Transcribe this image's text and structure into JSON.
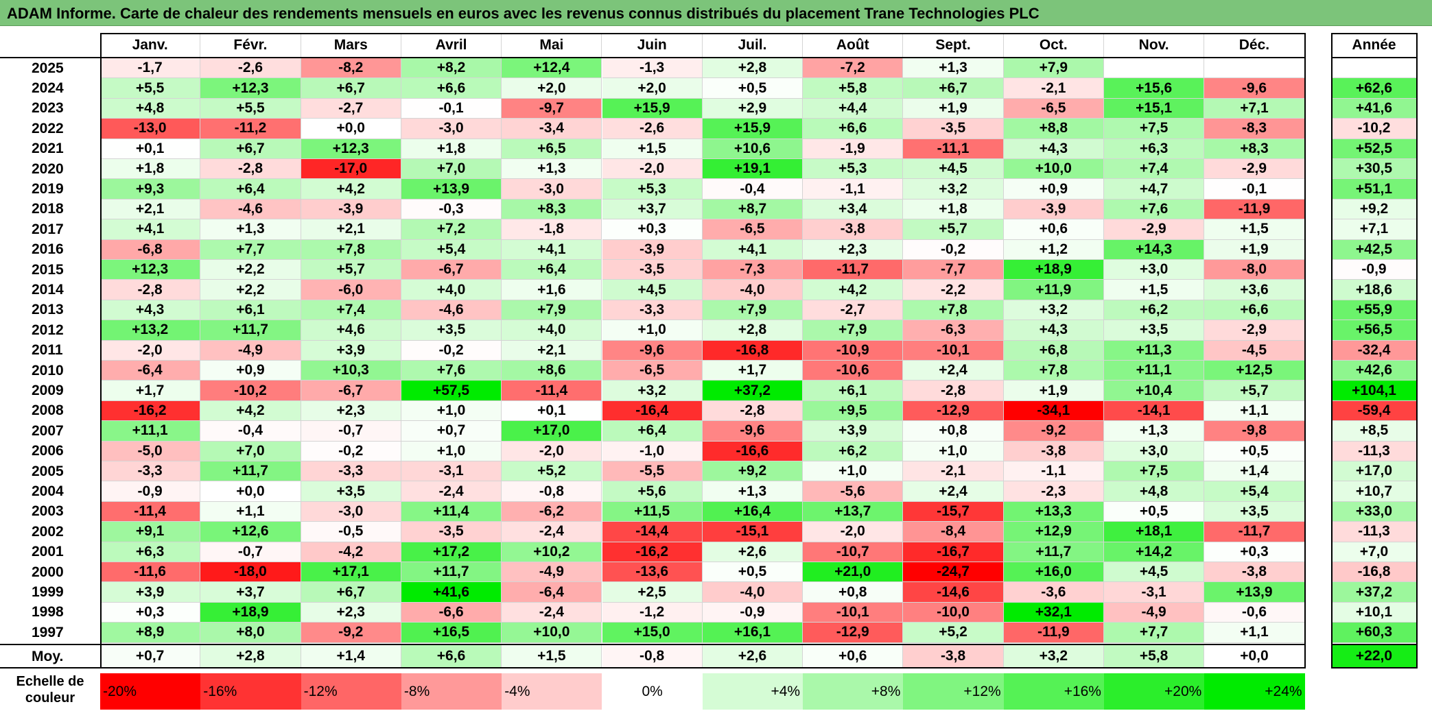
{
  "title": "ADAM Informe. Carte de chaleur des rendements mensuels en euros avec les revenus connus distribués du placement Trane Technologies PLC",
  "chart_data": {
    "type": "heatmap",
    "months": [
      "Janv.",
      "Févr.",
      "Mars",
      "Avril",
      "Mai",
      "Juin",
      "Juil.",
      "Août",
      "Sept.",
      "Oct.",
      "Nov.",
      "Déc."
    ],
    "year_header": "Année",
    "avg_label": "Moy.",
    "rows": [
      {
        "year": "2025",
        "values": [
          "-1,7",
          "-2,6",
          "-8,2",
          "+8,2",
          "+12,4",
          "-1,3",
          "+2,8",
          "-7,2",
          "+1,3",
          "+7,9",
          "",
          ""
        ],
        "annual": ""
      },
      {
        "year": "2024",
        "values": [
          "+5,5",
          "+12,3",
          "+6,7",
          "+6,6",
          "+2,0",
          "+2,0",
          "+0,5",
          "+5,8",
          "+6,7",
          "-2,1",
          "+15,6",
          "-9,6"
        ],
        "annual": "+62,6"
      },
      {
        "year": "2023",
        "values": [
          "+4,8",
          "+5,5",
          "-2,7",
          "-0,1",
          "-9,7",
          "+15,9",
          "+2,9",
          "+4,4",
          "+1,9",
          "-6,5",
          "+15,1",
          "+7,1"
        ],
        "annual": "+41,6"
      },
      {
        "year": "2022",
        "values": [
          "-13,0",
          "-11,2",
          "+0,0",
          "-3,0",
          "-3,4",
          "-2,6",
          "+15,9",
          "+6,6",
          "-3,5",
          "+8,8",
          "+7,5",
          "-8,3"
        ],
        "annual": "-10,2"
      },
      {
        "year": "2021",
        "values": [
          "+0,1",
          "+6,7",
          "+12,3",
          "+1,8",
          "+6,5",
          "+1,5",
          "+10,6",
          "-1,9",
          "-11,1",
          "+4,3",
          "+6,3",
          "+8,3"
        ],
        "annual": "+52,5"
      },
      {
        "year": "2020",
        "values": [
          "+1,8",
          "-2,8",
          "-17,0",
          "+7,0",
          "+1,3",
          "-2,0",
          "+19,1",
          "+5,3",
          "+4,5",
          "+10,0",
          "+7,4",
          "-2,9"
        ],
        "annual": "+30,5"
      },
      {
        "year": "2019",
        "values": [
          "+9,3",
          "+6,4",
          "+4,2",
          "+13,9",
          "-3,0",
          "+5,3",
          "-0,4",
          "-1,1",
          "+3,2",
          "+0,9",
          "+4,7",
          "-0,1"
        ],
        "annual": "+51,1"
      },
      {
        "year": "2018",
        "values": [
          "+2,1",
          "-4,6",
          "-3,9",
          "-0,3",
          "+8,3",
          "+3,7",
          "+8,7",
          "+3,4",
          "+1,8",
          "-3,9",
          "+7,6",
          "-11,9"
        ],
        "annual": "+9,2"
      },
      {
        "year": "2017",
        "values": [
          "+4,1",
          "+1,3",
          "+2,1",
          "+7,2",
          "-1,8",
          "+0,3",
          "-6,5",
          "-3,8",
          "+5,7",
          "+0,6",
          "-2,9",
          "+1,5"
        ],
        "annual": "+7,1"
      },
      {
        "year": "2016",
        "values": [
          "-6,8",
          "+7,7",
          "+7,8",
          "+5,4",
          "+4,1",
          "-3,9",
          "+4,1",
          "+2,3",
          "-0,2",
          "+1,2",
          "+14,3",
          "+1,9"
        ],
        "annual": "+42,5"
      },
      {
        "year": "2015",
        "values": [
          "+12,3",
          "+2,2",
          "+5,7",
          "-6,7",
          "+6,4",
          "-3,5",
          "-7,3",
          "-11,7",
          "-7,7",
          "+18,9",
          "+3,0",
          "-8,0"
        ],
        "annual": "-0,9"
      },
      {
        "year": "2014",
        "values": [
          "-2,8",
          "+2,2",
          "-6,0",
          "+4,0",
          "+1,6",
          "+4,5",
          "-4,0",
          "+4,2",
          "-2,2",
          "+11,9",
          "+1,5",
          "+3,6"
        ],
        "annual": "+18,6"
      },
      {
        "year": "2013",
        "values": [
          "+4,3",
          "+6,1",
          "+7,4",
          "-4,6",
          "+7,9",
          "-3,3",
          "+7,9",
          "-2,7",
          "+7,8",
          "+3,2",
          "+6,2",
          "+6,6"
        ],
        "annual": "+55,9"
      },
      {
        "year": "2012",
        "values": [
          "+13,2",
          "+11,7",
          "+4,6",
          "+3,5",
          "+4,0",
          "+1,0",
          "+2,8",
          "+7,9",
          "-6,3",
          "+4,3",
          "+3,5",
          "-2,9"
        ],
        "annual": "+56,5"
      },
      {
        "year": "2011",
        "values": [
          "-2,0",
          "-4,9",
          "+3,9",
          "-0,2",
          "+2,1",
          "-9,6",
          "-16,8",
          "-10,9",
          "-10,1",
          "+6,8",
          "+11,3",
          "-4,5"
        ],
        "annual": "-32,4"
      },
      {
        "year": "2010",
        "values": [
          "-6,4",
          "+0,9",
          "+10,3",
          "+7,6",
          "+8,6",
          "-6,5",
          "+1,7",
          "-10,6",
          "+2,4",
          "+7,8",
          "+11,1",
          "+12,5"
        ],
        "annual": "+42,6"
      },
      {
        "year": "2009",
        "values": [
          "+1,7",
          "-10,2",
          "-6,7",
          "+57,5",
          "-11,4",
          "+3,2",
          "+37,2",
          "+6,1",
          "-2,8",
          "+1,9",
          "+10,4",
          "+5,7"
        ],
        "annual": "+104,1"
      },
      {
        "year": "2008",
        "values": [
          "-16,2",
          "+4,2",
          "+2,3",
          "+1,0",
          "+0,1",
          "-16,4",
          "-2,8",
          "+9,5",
          "-12,9",
          "-34,1",
          "-14,1",
          "+1,1"
        ],
        "annual": "-59,4"
      },
      {
        "year": "2007",
        "values": [
          "+11,1",
          "-0,4",
          "-0,7",
          "+0,7",
          "+17,0",
          "+6,4",
          "-9,6",
          "+3,9",
          "+0,8",
          "-9,2",
          "+1,3",
          "-9,8"
        ],
        "annual": "+8,5"
      },
      {
        "year": "2006",
        "values": [
          "-5,0",
          "+7,0",
          "-0,2",
          "+1,0",
          "-2,0",
          "-1,0",
          "-16,6",
          "+6,2",
          "+1,0",
          "-3,8",
          "+3,0",
          "+0,5"
        ],
        "annual": "-11,3"
      },
      {
        "year": "2005",
        "values": [
          "-3,3",
          "+11,7",
          "-3,3",
          "-3,1",
          "+5,2",
          "-5,5",
          "+9,2",
          "+1,0",
          "-2,1",
          "-1,1",
          "+7,5",
          "+1,4"
        ],
        "annual": "+17,0"
      },
      {
        "year": "2004",
        "values": [
          "-0,9",
          "+0,0",
          "+3,5",
          "-2,4",
          "-0,8",
          "+5,6",
          "+1,3",
          "-5,6",
          "+2,4",
          "-2,3",
          "+4,8",
          "+5,4"
        ],
        "annual": "+10,7"
      },
      {
        "year": "2003",
        "values": [
          "-11,4",
          "+1,1",
          "-3,0",
          "+11,4",
          "-6,2",
          "+11,5",
          "+16,4",
          "+13,7",
          "-15,7",
          "+13,3",
          "+0,5",
          "+3,5"
        ],
        "annual": "+33,0"
      },
      {
        "year": "2002",
        "values": [
          "+9,1",
          "+12,6",
          "-0,5",
          "-3,5",
          "-2,4",
          "-14,4",
          "-15,1",
          "-2,0",
          "-8,4",
          "+12,9",
          "+18,1",
          "-11,7"
        ],
        "annual": "-11,3"
      },
      {
        "year": "2001",
        "values": [
          "+6,3",
          "-0,7",
          "-4,2",
          "+17,2",
          "+10,2",
          "-16,2",
          "+2,6",
          "-10,7",
          "-16,7",
          "+11,7",
          "+14,2",
          "+0,3"
        ],
        "annual": "+7,0"
      },
      {
        "year": "2000",
        "values": [
          "-11,6",
          "-18,0",
          "+17,1",
          "+11,7",
          "-4,9",
          "-13,6",
          "+0,5",
          "+21,0",
          "-24,7",
          "+16,0",
          "+4,5",
          "-3,8"
        ],
        "annual": "-16,8"
      },
      {
        "year": "1999",
        "values": [
          "+3,9",
          "+3,7",
          "+6,7",
          "+41,6",
          "-6,4",
          "+2,5",
          "-4,0",
          "+0,8",
          "-14,6",
          "-3,6",
          "-3,1",
          "+13,9"
        ],
        "annual": "+37,2"
      },
      {
        "year": "1998",
        "values": [
          "+0,3",
          "+18,9",
          "+2,3",
          "-6,6",
          "-2,4",
          "-1,2",
          "-0,9",
          "-10,1",
          "-10,0",
          "+32,1",
          "-4,9",
          "-0,6"
        ],
        "annual": "+10,1"
      },
      {
        "year": "1997",
        "values": [
          "+8,9",
          "+8,0",
          "-9,2",
          "+16,5",
          "+10,0",
          "+15,0",
          "+16,1",
          "-12,9",
          "+5,2",
          "-11,9",
          "+7,7",
          "+1,1"
        ],
        "annual": "+60,3"
      }
    ],
    "averages": [
      "+0,7",
      "+2,8",
      "+1,4",
      "+6,6",
      "+1,5",
      "-0,8",
      "+2,6",
      "+0,6",
      "-3,8",
      "+3,2",
      "+5,8",
      "+0,0"
    ],
    "avg_annual": "+22,0",
    "scale_label": "Echelle de couleur",
    "scale": [
      {
        "label": "-20%",
        "value": -20
      },
      {
        "label": "-16%",
        "value": -16
      },
      {
        "label": "-12%",
        "value": -12
      },
      {
        "label": "-8%",
        "value": -8
      },
      {
        "label": "-4%",
        "value": -4
      },
      {
        "label": "0%",
        "value": 0
      },
      {
        "label": "+4%",
        "value": 4
      },
      {
        "label": "+8%",
        "value": 8
      },
      {
        "label": "+12%",
        "value": 12
      },
      {
        "label": "+16%",
        "value": 16
      },
      {
        "label": "+20%",
        "value": 20
      },
      {
        "label": "+24%",
        "value": 24
      }
    ],
    "colors": {
      "negative_max": "#ff0000",
      "neutral": "#ffffff",
      "positive_max": "#00ee00"
    }
  }
}
